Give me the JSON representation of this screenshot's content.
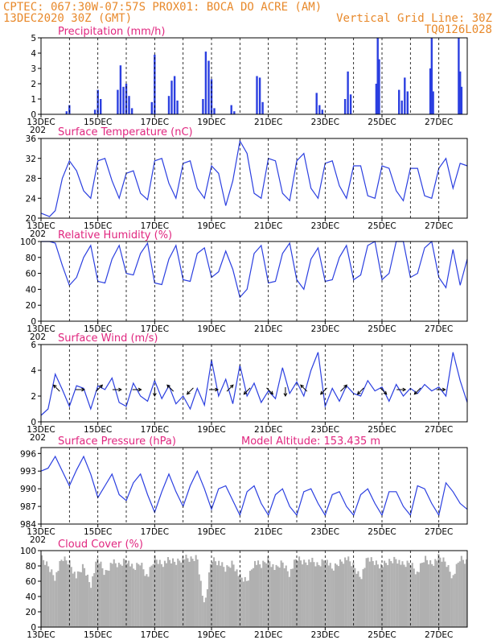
{
  "header": {
    "line1": "CPTEC:  067:30W-07:57S   PROX01: BOCA DO ACRE (AM)",
    "line2_left": "13DEC2020 30Z (GMT)",
    "line2_right": "Vertical Grid Line: 30Z",
    "line3_right": "TQ0126L028"
  },
  "colors": {
    "series": "#2b3fe0",
    "title": "#e0267f",
    "header": "#e8892b",
    "cloud": "#b0b0b0"
  },
  "x_axis": {
    "day_start": 13,
    "day_end": 28,
    "tick_days": [
      13,
      15,
      17,
      19,
      21,
      23,
      25,
      27
    ],
    "tick_labels": [
      "13DEC",
      "15DEC",
      "17DEC",
      "19DEC",
      "21DEC",
      "23DEC",
      "25DEC",
      "27DEC"
    ],
    "year_fragment": "202"
  },
  "chart_data": [
    {
      "id": "precip",
      "type": "bar",
      "title": "Precipitation (mm/h)",
      "ylim": [
        0,
        5
      ],
      "yticks": [
        0,
        1,
        2,
        3,
        4,
        5
      ],
      "x": [
        13.9,
        14.0,
        14.9,
        15.0,
        15.1,
        15.7,
        15.8,
        15.9,
        16.0,
        16.1,
        16.2,
        16.9,
        17.0,
        17.5,
        17.6,
        17.7,
        17.8,
        18.7,
        18.8,
        18.9,
        19.0,
        19.1,
        19.7,
        19.8,
        20.6,
        20.7,
        20.8,
        22.7,
        22.8,
        22.9,
        23.7,
        23.8,
        23.9,
        24.8,
        24.85,
        24.9,
        25.6,
        25.7,
        25.8,
        25.9,
        26.7,
        26.75,
        26.8,
        27.7,
        27.75,
        27.8
      ],
      "values": [
        0.2,
        0.6,
        0.3,
        1.6,
        1.0,
        1.6,
        3.2,
        1.8,
        2.0,
        1.2,
        0.4,
        0.8,
        3.9,
        1.2,
        2.2,
        2.5,
        0.9,
        1.0,
        4.1,
        3.5,
        2.3,
        0.4,
        0.6,
        0.2,
        2.5,
        2.4,
        0.8,
        1.4,
        0.6,
        0.3,
        1.0,
        2.8,
        1.3,
        2.0,
        5.0,
        3.6,
        1.6,
        0.9,
        2.4,
        1.5,
        3.0,
        5.0,
        1.5,
        5.0,
        2.8,
        1.8
      ]
    },
    {
      "id": "temp",
      "type": "line",
      "title": "Surface Temperature (nC)",
      "ylim": [
        20,
        36
      ],
      "yticks": [
        20,
        24,
        28,
        32,
        36
      ],
      "x": [
        13.0,
        13.3,
        13.5,
        13.75,
        14.0,
        14.25,
        14.5,
        14.75,
        15.0,
        15.25,
        15.5,
        15.75,
        16.0,
        16.25,
        16.5,
        16.75,
        17.0,
        17.25,
        17.5,
        17.75,
        18.0,
        18.25,
        18.5,
        18.75,
        19.0,
        19.25,
        19.5,
        19.75,
        20.0,
        20.25,
        20.5,
        20.75,
        21.0,
        21.25,
        21.5,
        21.75,
        22.0,
        22.25,
        22.5,
        22.75,
        23.0,
        23.25,
        23.5,
        23.75,
        24.0,
        24.25,
        24.5,
        24.75,
        25.0,
        25.25,
        25.5,
        25.75,
        26.0,
        26.25,
        26.5,
        26.75,
        27.0,
        27.25,
        27.5,
        27.75,
        28.0
      ],
      "values": [
        21.0,
        20.3,
        21.5,
        28.0,
        31.5,
        29.5,
        25.5,
        24.0,
        31.5,
        32.0,
        27.5,
        24.0,
        29.0,
        29.5,
        25.0,
        23.7,
        31.5,
        32.0,
        27.0,
        24.0,
        31.0,
        31.5,
        26.0,
        24.0,
        30.5,
        29.0,
        22.5,
        27.5,
        35.5,
        33.0,
        25.0,
        24.0,
        32.0,
        31.5,
        25.0,
        23.5,
        31.5,
        33.0,
        26.0,
        24.0,
        31.0,
        31.5,
        26.5,
        24.0,
        30.5,
        30.5,
        24.5,
        24.0,
        30.5,
        30.0,
        25.5,
        23.5,
        30.0,
        30.0,
        24.5,
        24.0,
        30.0,
        32.0,
        26.0,
        31.0,
        30.5
      ]
    },
    {
      "id": "rh",
      "type": "line",
      "title": "Relative Humidity (%)",
      "ylim": [
        0,
        100
      ],
      "yticks": [
        0,
        20,
        40,
        60,
        80,
        100
      ],
      "x": [
        13.0,
        13.3,
        13.5,
        13.75,
        14.0,
        14.25,
        14.5,
        14.75,
        15.0,
        15.25,
        15.5,
        15.75,
        16.0,
        16.25,
        16.5,
        16.75,
        17.0,
        17.25,
        17.5,
        17.75,
        18.0,
        18.25,
        18.5,
        18.75,
        19.0,
        19.25,
        19.5,
        19.75,
        20.0,
        20.25,
        20.5,
        20.75,
        21.0,
        21.25,
        21.5,
        21.75,
        22.0,
        22.25,
        22.5,
        22.75,
        23.0,
        23.25,
        23.5,
        23.75,
        24.0,
        24.25,
        24.5,
        24.75,
        25.0,
        25.25,
        25.5,
        25.75,
        26.0,
        26.25,
        26.5,
        26.75,
        27.0,
        27.25,
        27.5,
        27.75,
        28.0
      ],
      "values": [
        100,
        100,
        98,
        70,
        45,
        55,
        80,
        95,
        50,
        48,
        78,
        95,
        60,
        58,
        85,
        98,
        48,
        46,
        78,
        95,
        52,
        50,
        85,
        92,
        55,
        62,
        88,
        65,
        30,
        40,
        85,
        95,
        48,
        50,
        85,
        98,
        52,
        40,
        78,
        92,
        50,
        52,
        80,
        95,
        52,
        58,
        95,
        100,
        52,
        60,
        100,
        100,
        55,
        60,
        92,
        100,
        55,
        42,
        90,
        45,
        78
      ]
    },
    {
      "id": "wind",
      "type": "line",
      "title": "Surface Wind (m/s)",
      "ylim": [
        0,
        6
      ],
      "yticks": [
        0,
        2,
        4,
        6
      ],
      "x": [
        13.0,
        13.25,
        13.5,
        13.75,
        14.0,
        14.25,
        14.5,
        14.75,
        15.0,
        15.25,
        15.5,
        15.75,
        16.0,
        16.25,
        16.5,
        16.75,
        17.0,
        17.25,
        17.5,
        17.75,
        18.0,
        18.25,
        18.5,
        18.75,
        19.0,
        19.25,
        19.5,
        19.75,
        20.0,
        20.25,
        20.5,
        20.75,
        21.0,
        21.25,
        21.5,
        21.75,
        22.0,
        22.25,
        22.5,
        22.75,
        23.0,
        23.25,
        23.5,
        23.75,
        24.0,
        24.25,
        24.5,
        24.75,
        25.0,
        25.25,
        25.5,
        25.75,
        26.0,
        26.25,
        26.5,
        26.75,
        27.0,
        27.25,
        27.5,
        27.75,
        28.0
      ],
      "values": [
        0.5,
        1.0,
        3.7,
        2.5,
        1.2,
        2.8,
        2.6,
        1.0,
        2.8,
        2.5,
        3.4,
        1.5,
        1.2,
        3.0,
        2.0,
        1.6,
        3.2,
        1.8,
        2.8,
        1.4,
        2.0,
        1.0,
        2.6,
        1.3,
        4.8,
        2.0,
        3.3,
        1.4,
        4.4,
        2.0,
        3.0,
        1.5,
        2.4,
        1.8,
        4.2,
        2.2,
        3.1,
        2.0,
        4.0,
        5.4,
        1.2,
        2.6,
        1.6,
        2.8,
        2.2,
        2.0,
        3.2,
        2.4,
        2.7,
        1.6,
        2.9,
        2.0,
        2.6,
        2.2,
        2.9,
        2.4,
        2.7,
        2.0,
        5.4,
        3.2,
        1.5
      ],
      "vectors": {
        "x": [
          13.6,
          14.3,
          15.0,
          15.6,
          16.3,
          17.0,
          17.6,
          18.3,
          19.0,
          19.6,
          20.3,
          21.0,
          21.6,
          22.3,
          23.0,
          23.6,
          24.3,
          25.0,
          25.6,
          26.3,
          27.0
        ],
        "dx": [
          -1,
          1,
          1,
          1,
          1,
          0,
          -1,
          -1,
          1,
          1,
          -1,
          1,
          0,
          -1,
          -1,
          1,
          -1,
          1,
          1,
          -1,
          1
        ],
        "dy": [
          1,
          0,
          1,
          0,
          0,
          -1,
          1,
          -1,
          0,
          1,
          -1,
          -1,
          -1,
          1,
          -1,
          1,
          -1,
          -1,
          0,
          -1,
          0
        ]
      }
    },
    {
      "id": "pres",
      "type": "line",
      "title": "Surface Pressure (hPa)",
      "subtitle": "Model Altitude: 153.435 m",
      "ylim": [
        984,
        997
      ],
      "yticks": [
        984,
        987,
        990,
        993,
        996
      ],
      "x": [
        13.0,
        13.25,
        13.5,
        13.75,
        14.0,
        14.25,
        14.5,
        14.75,
        15.0,
        15.25,
        15.5,
        15.75,
        16.0,
        16.25,
        16.5,
        16.75,
        17.0,
        17.25,
        17.5,
        17.75,
        18.0,
        18.25,
        18.5,
        18.75,
        19.0,
        19.25,
        19.5,
        19.75,
        20.0,
        20.25,
        20.5,
        20.75,
        21.0,
        21.25,
        21.5,
        21.75,
        22.0,
        22.25,
        22.5,
        22.75,
        23.0,
        23.25,
        23.5,
        23.75,
        24.0,
        24.25,
        24.5,
        24.75,
        25.0,
        25.25,
        25.5,
        25.75,
        26.0,
        26.25,
        26.5,
        26.75,
        27.0,
        27.25,
        27.5,
        27.75,
        28.0
      ],
      "values": [
        993.0,
        993.5,
        995.5,
        993.0,
        990.5,
        993.2,
        995.5,
        992.5,
        988.5,
        990.5,
        992.5,
        989.0,
        988.0,
        991.0,
        992.5,
        989.0,
        986.0,
        989.5,
        992.5,
        989.5,
        987.0,
        990.5,
        993.0,
        990.0,
        986.5,
        990.0,
        990.5,
        988.0,
        985.5,
        989.5,
        990.5,
        987.5,
        985.5,
        989.0,
        990.0,
        987.0,
        985.5,
        989.5,
        990.0,
        987.5,
        985.5,
        989.0,
        989.5,
        987.0,
        985.5,
        989.0,
        990.0,
        987.5,
        985.5,
        989.5,
        989.5,
        987.0,
        985.5,
        990.5,
        990.0,
        987.5,
        985.5,
        991.0,
        989.5,
        987.5,
        986.5
      ]
    },
    {
      "id": "cloud",
      "type": "area",
      "title": "Cloud Cover (%)",
      "ylim": [
        0,
        100
      ],
      "yticks": [
        0,
        20,
        40,
        60,
        80,
        100
      ],
      "x": [
        13.0,
        13.25,
        13.5,
        13.75,
        14.0,
        14.25,
        14.5,
        14.75,
        15.0,
        15.25,
        15.5,
        15.75,
        16.0,
        16.25,
        16.5,
        16.75,
        17.0,
        17.25,
        17.5,
        17.75,
        18.0,
        18.25,
        18.5,
        18.75,
        19.0,
        19.25,
        19.5,
        19.75,
        20.0,
        20.25,
        20.5,
        20.75,
        21.0,
        21.25,
        21.5,
        21.75,
        22.0,
        22.25,
        22.5,
        22.75,
        23.0,
        23.25,
        23.5,
        23.75,
        24.0,
        24.25,
        24.5,
        24.75,
        25.0,
        25.25,
        25.5,
        25.75,
        26.0,
        26.25,
        26.5,
        26.75,
        27.0,
        27.25,
        27.5,
        27.75,
        28.0
      ],
      "values": [
        95,
        85,
        70,
        95,
        90,
        70,
        85,
        60,
        95,
        75,
        90,
        85,
        95,
        80,
        90,
        70,
        95,
        88,
        92,
        90,
        96,
        93,
        97,
        30,
        95,
        90,
        80,
        90,
        70,
        65,
        90,
        85,
        95,
        80,
        90,
        75,
        95,
        90,
        92,
        85,
        95,
        80,
        90,
        95,
        85,
        70,
        95,
        90,
        85,
        90,
        95,
        85,
        90,
        75,
        95,
        88,
        96,
        90,
        70,
        95,
        90
      ]
    }
  ]
}
